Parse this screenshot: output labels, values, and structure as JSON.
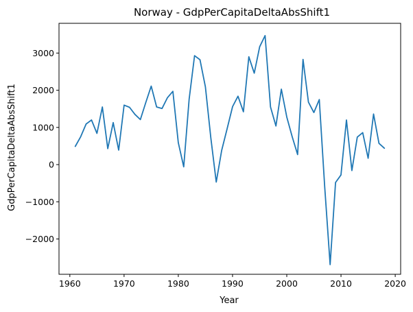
{
  "chart_data": {
    "type": "line",
    "title": "Norway - GdpPerCapitaDeltaAbsShift1",
    "xlabel": "Year",
    "ylabel": "GdpPerCapitaDeltaAbsShift1",
    "xlim": [
      1958,
      2021
    ],
    "ylim": [
      -2950,
      3800
    ],
    "xticks": [
      1960,
      1970,
      1980,
      1990,
      2000,
      2010,
      2020
    ],
    "yticks": [
      -2000,
      -1000,
      0,
      1000,
      2000,
      3000
    ],
    "ytick_labels": [
      "−2000",
      "−1000",
      "0",
      "1000",
      "2000",
      "3000"
    ],
    "grid": false,
    "line_color": "#1f77b4",
    "series": [
      {
        "x": [
          1961,
          1962,
          1963,
          1964,
          1965,
          1966,
          1967,
          1968,
          1969,
          1970,
          1971,
          1972,
          1973,
          1974,
          1975,
          1976,
          1977,
          1978,
          1979,
          1980,
          1981,
          1982,
          1983,
          1984,
          1985,
          1986,
          1987,
          1988,
          1989,
          1990,
          1991,
          1992,
          1993,
          1994,
          1995,
          1996,
          1997,
          1998,
          1999,
          2000,
          2001,
          2002,
          2003,
          2004,
          2005,
          2006,
          2007,
          2008,
          2009,
          2010,
          2011,
          2012,
          2013,
          2014,
          2015,
          2016,
          2017,
          2018
        ],
        "values": [
          490,
          750,
          1090,
          1200,
          840,
          1550,
          430,
          1130,
          390,
          1600,
          1540,
          1350,
          1210,
          1670,
          2110,
          1550,
          1510,
          1800,
          1970,
          590,
          -60,
          1760,
          2930,
          2820,
          2090,
          720,
          -470,
          380,
          960,
          1560,
          1840,
          1420,
          2900,
          2460,
          3170,
          3470,
          1550,
          1040,
          2030,
          1280,
          750,
          270,
          2830,
          1680,
          1400,
          1750,
          -600,
          -2690,
          -480,
          -280,
          1200,
          -160,
          740,
          860,
          170,
          1360,
          570,
          440
        ]
      }
    ]
  }
}
